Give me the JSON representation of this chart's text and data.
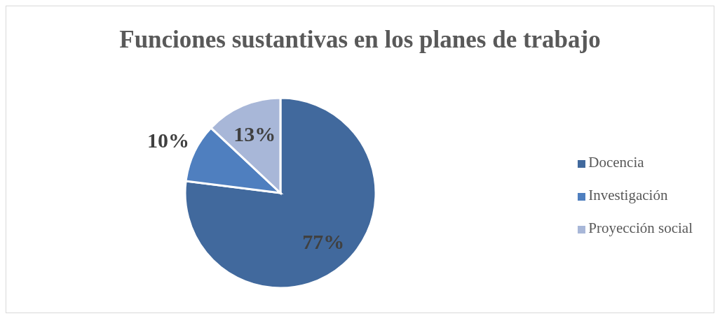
{
  "chart_data": {
    "type": "pie",
    "title": "Funciones sustantivas en los planes de trabajo",
    "categories": [
      "Docencia",
      "Investigación",
      "Proyección social"
    ],
    "values": [
      77,
      10,
      13
    ],
    "colors": [
      "#41699d",
      "#4f7fbf",
      "#a8b7d8"
    ],
    "value_labels": [
      "77%",
      "10%",
      "13%"
    ],
    "legend": "right"
  }
}
